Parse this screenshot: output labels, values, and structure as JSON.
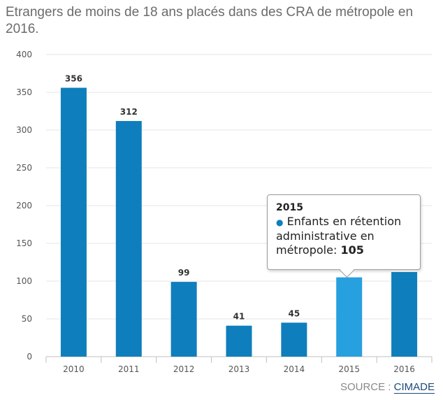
{
  "chart_data": {
    "type": "bar",
    "title": "Etrangers de moins de 18 ans placés dans des CRA de métropole en 2016.",
    "categories": [
      "2010",
      "2011",
      "2012",
      "2013",
      "2014",
      "2015",
      "2016"
    ],
    "series": [
      {
        "name": "Enfants en rétention administrative en métropole",
        "values": [
          356,
          312,
          99,
          41,
          45,
          105,
          112
        ]
      }
    ],
    "data_labels": [
      "356",
      "312",
      "99",
      "41",
      "45",
      "",
      ""
    ],
    "y_ticks": [
      0,
      50,
      100,
      150,
      200,
      250,
      300,
      350,
      400
    ],
    "ylim": [
      0,
      400
    ],
    "xlabel": "",
    "ylabel": "",
    "grid": true,
    "highlighted_index": 5
  },
  "tooltip": {
    "year": "2015",
    "bullet": "●",
    "series_name": "Enfants en rétention administrative en métropole:",
    "value": "105"
  },
  "source": {
    "prefix": "SOURCE : ",
    "name": "CIMADE"
  },
  "colors": {
    "bar": "#0f7ebc",
    "bar_highlight": "#27a0df",
    "grid": "#e6e6e6",
    "axis": "#c0c0c0"
  }
}
